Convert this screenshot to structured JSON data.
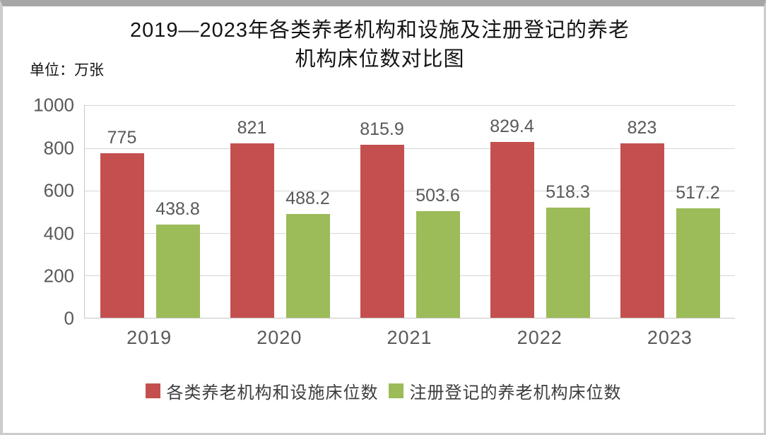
{
  "title": {
    "line1": "2019—2023年各类养老机构和设施及注册登记的养老",
    "line2": "机构床位数对比图"
  },
  "unit_label": "单位：万张",
  "colors": {
    "series1": "#c3504e",
    "series2": "#9cbb59",
    "label_gray": "#595959",
    "gridline": "#d6d6d6",
    "axis_line": "#c6c6c6"
  },
  "chart_data": {
    "type": "bar",
    "title": "2019—2023年各类养老机构和设施及注册登记的养老机构床位数对比图",
    "unit": "万张",
    "categories": [
      "2019",
      "2020",
      "2021",
      "2022",
      "2023"
    ],
    "series": [
      {
        "name": "各类养老机构和设施床位数",
        "color": "#c3504e",
        "values": [
          775,
          821,
          815.9,
          829.4,
          823
        ]
      },
      {
        "name": "注册登记的养老机构床位数",
        "color": "#9cbb59",
        "values": [
          438.8,
          488.2,
          503.6,
          518.3,
          517.2
        ]
      }
    ],
    "ylim": [
      0,
      1000
    ],
    "yticks": [
      0,
      200,
      400,
      600,
      800,
      1000
    ],
    "grid": true,
    "legend_position": "bottom",
    "data_labels": true
  }
}
